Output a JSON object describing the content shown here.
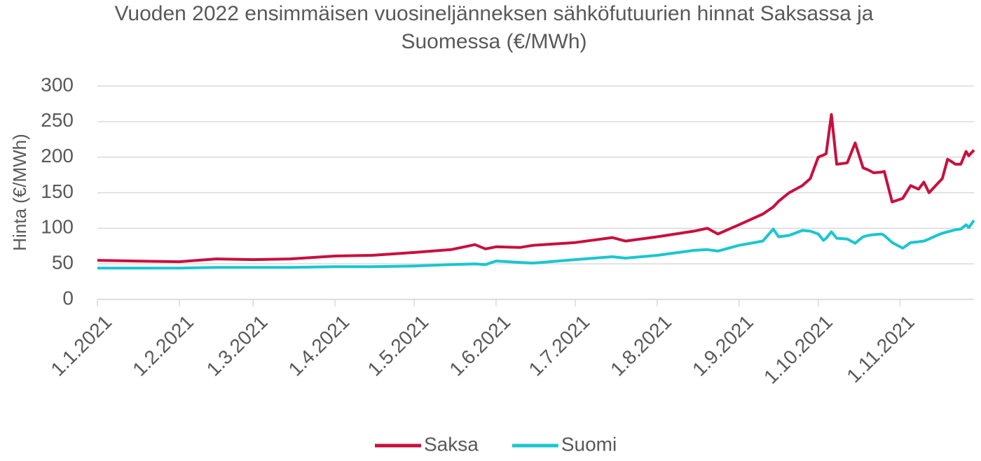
{
  "chart_data": {
    "type": "line",
    "title": "Vuoden 2022 ensimmäisen vuosineljänneksen sähköfutuurien hinnat Saksassa ja Suomessa (€/MWh)",
    "y_label": "Hinta (€/MWh)",
    "x": [
      "1.1.2021",
      "15.1.2021",
      "1.2.2021",
      "15.2.2021",
      "1.3.2021",
      "15.3.2021",
      "1.4.2021",
      "15.4.2021",
      "1.5.2021",
      "15.5.2021",
      "24.5.2021",
      "28.5.2021",
      "1.6.2021",
      "10.6.2021",
      "15.6.2021",
      "1.7.2021",
      "15.7.2021",
      "20.7.2021",
      "1.8.2021",
      "15.8.2021",
      "20.8.2021",
      "24.8.2021",
      "1.9.2021",
      "10.9.2021",
      "14.9.2021",
      "16.9.2021",
      "20.9.2021",
      "25.9.2021",
      "28.9.2021",
      "1.10.2021",
      "3.10.2021",
      "4.10.2021",
      "6.10.2021",
      "8.10.2021",
      "12.10.2021",
      "15.10.2021",
      "18.10.2021",
      "20.10.2021",
      "22.10.2021",
      "25.10.2021",
      "26.10.2021",
      "29.10.2021",
      "2.11.2021",
      "5.11.2021",
      "8.11.2021",
      "10.11.2021",
      "12.11.2021",
      "15.11.2021",
      "17.11.2021",
      "19.11.2021",
      "20.11.2021",
      "22.11.2021",
      "24.11.2021",
      "26.11.2021",
      "27.11.2021",
      "29.11.2021"
    ],
    "series": [
      {
        "name": "Saksa",
        "color": "#c8103e",
        "values": [
          55,
          54,
          53,
          57,
          56,
          57,
          61,
          62,
          66,
          70,
          77,
          71,
          74,
          73,
          76,
          80,
          87,
          82,
          88,
          96,
          100,
          92,
          105,
          120,
          130,
          138,
          150,
          160,
          170,
          200,
          203,
          205,
          260,
          190,
          192,
          220,
          185,
          182,
          178,
          179,
          180,
          137,
          142,
          160,
          155,
          165,
          150,
          162,
          170,
          197,
          195,
          190,
          190,
          208,
          202,
          210
        ]
      },
      {
        "name": "Suomi",
        "color": "#1bc6cf",
        "values": [
          44,
          44,
          44,
          45,
          45,
          45,
          46,
          46,
          47,
          49,
          50,
          49,
          54,
          52,
          51,
          56,
          60,
          58,
          62,
          69,
          70,
          68,
          76,
          82,
          99,
          88,
          90,
          97,
          96,
          92,
          83,
          86,
          95,
          86,
          85,
          79,
          88,
          90,
          91,
          92,
          90,
          80,
          72,
          80,
          81,
          82,
          85,
          90,
          93,
          95,
          96,
          98,
          99,
          105,
          101,
          111
        ]
      }
    ],
    "xlim": [
      "1.1.2021",
      "29.11.2021"
    ],
    "xticks": [
      "1.1.2021",
      "1.2.2021",
      "1.3.2021",
      "1.4.2021",
      "1.5.2021",
      "1.6.2021",
      "1.7.2021",
      "1.8.2021",
      "1.9.2021",
      "1.10.2021",
      "1.11.2021"
    ],
    "ylim": [
      0,
      300
    ],
    "yticks": [
      0,
      50,
      100,
      150,
      200,
      250,
      300
    ],
    "grid": true,
    "legend": "bottom"
  }
}
